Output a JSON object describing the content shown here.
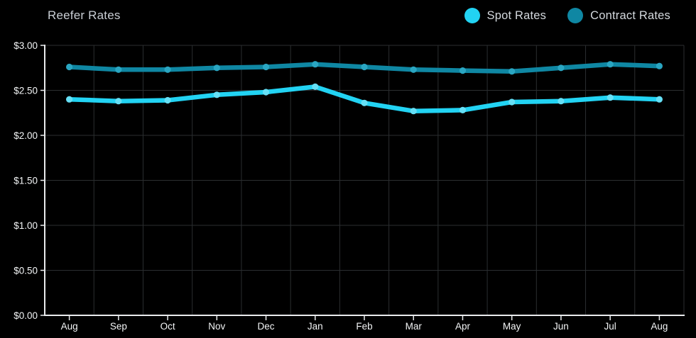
{
  "header": {
    "title": "Reefer Rates"
  },
  "legend": {
    "items": [
      {
        "label": "Spot Rates",
        "color": "#22d3f3"
      },
      {
        "label": "Contract Rates",
        "color": "#0f87a3"
      }
    ]
  },
  "chart_data": {
    "type": "line",
    "title": "Reefer Rates",
    "categories": [
      "Aug",
      "Sep",
      "Oct",
      "Nov",
      "Dec",
      "Jan",
      "Feb",
      "Mar",
      "Apr",
      "May",
      "Jun",
      "Jul",
      "Aug"
    ],
    "series": [
      {
        "name": "Spot Rates",
        "color": "#22d3f3",
        "point_color": "#66e0f6",
        "values": [
          2.4,
          2.38,
          2.39,
          2.45,
          2.48,
          2.54,
          2.36,
          2.27,
          2.28,
          2.37,
          2.38,
          2.42,
          2.4
        ]
      },
      {
        "name": "Contract Rates",
        "color": "#0f87a3",
        "point_color": "#2aa6c2",
        "values": [
          2.76,
          2.73,
          2.73,
          2.75,
          2.76,
          2.79,
          2.76,
          2.73,
          2.72,
          2.71,
          2.75,
          2.79,
          2.77
        ]
      }
    ],
    "xlabel": "",
    "ylabel": "",
    "ylim": [
      0,
      3
    ],
    "y_ticks": [
      {
        "value": 3.0,
        "label": "$3.00"
      },
      {
        "value": 2.5,
        "label": "$2.50"
      },
      {
        "value": 2.0,
        "label": "$2.00"
      },
      {
        "value": 1.5,
        "label": "$1.50"
      },
      {
        "value": 1.0,
        "label": "$1.00"
      },
      {
        "value": 0.5,
        "label": "$0.50"
      },
      {
        "value": 0.0,
        "label": "$0.00"
      }
    ],
    "grid": true,
    "grid_offset_between_categories": true,
    "legend_position": "top-right",
    "colors": {
      "background": "#000000",
      "gridline": "#2b2e30",
      "axis": "#e9ebed",
      "tick_label": "#f3f5f6",
      "title": "#c9ced4",
      "legend_text": "#d4d9de"
    }
  }
}
